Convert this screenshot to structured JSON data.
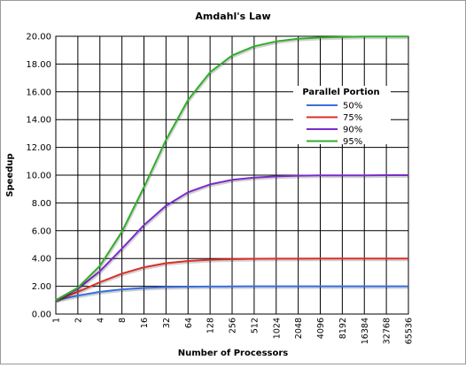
{
  "chart_data": {
    "type": "line",
    "title": "Amdahl's Law",
    "xlabel": "Number of Processors",
    "ylabel": "Speedup",
    "x": [
      "1",
      "2",
      "4",
      "8",
      "16",
      "32",
      "64",
      "128",
      "256",
      "512",
      "1024",
      "2048",
      "4096",
      "8192",
      "16384",
      "32768",
      "65536"
    ],
    "x_scale": "log2",
    "ylim": [
      0,
      20
    ],
    "yticks": [
      "0.00",
      "2.00",
      "4.00",
      "6.00",
      "8.00",
      "10.00",
      "12.00",
      "14.00",
      "16.00",
      "18.00",
      "20.00"
    ],
    "grid": true,
    "legend_title": "Parallel Portion",
    "legend_position": "right",
    "series": [
      {
        "name": "50%",
        "color": "#3a6fe0",
        "values": [
          1.0,
          1.33,
          1.6,
          1.78,
          1.88,
          1.94,
          1.97,
          1.98,
          1.99,
          2.0,
          2.0,
          2.0,
          2.0,
          2.0,
          2.0,
          2.0,
          2.0
        ]
      },
      {
        "name": "75%",
        "color": "#dc2e28",
        "values": [
          1.0,
          1.6,
          2.29,
          2.91,
          3.37,
          3.66,
          3.82,
          3.91,
          3.95,
          3.98,
          3.99,
          3.99,
          4.0,
          4.0,
          4.0,
          4.0,
          4.0
        ]
      },
      {
        "name": "90%",
        "color": "#7a2cc9",
        "values": [
          1.0,
          1.82,
          3.08,
          4.71,
          6.4,
          7.8,
          8.77,
          9.34,
          9.66,
          9.83,
          9.91,
          9.96,
          9.98,
          9.99,
          9.99,
          10.0,
          10.0
        ]
      },
      {
        "name": "95%",
        "color": "#33ad2c",
        "values": [
          1.0,
          1.9,
          3.48,
          5.93,
          9.14,
          12.55,
          15.42,
          17.41,
          18.62,
          19.28,
          19.63,
          19.82,
          19.91,
          19.95,
          19.98,
          19.99,
          19.99
        ]
      }
    ]
  }
}
